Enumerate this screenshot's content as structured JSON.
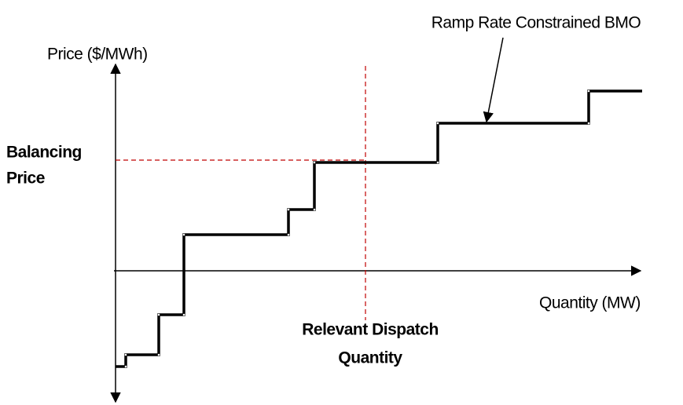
{
  "labels": {
    "curve_label": "Ramp Rate Constrained BMO",
    "y_axis": "Price ($/MWh)",
    "x_axis": "Quantity (MW)",
    "balancing_price": [
      "Balancing",
      "Price"
    ],
    "dispatch_quantity": [
      "Relevant Dispatch",
      "Quantity"
    ]
  }
}
